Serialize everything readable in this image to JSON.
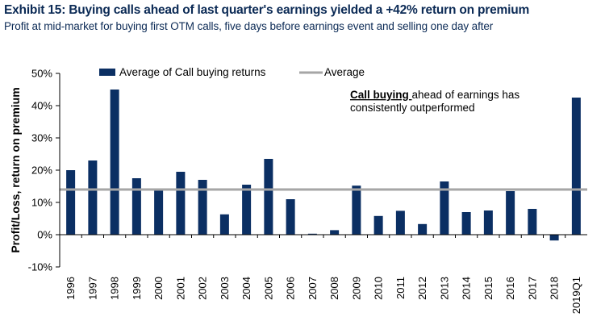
{
  "title": "Exhibit 15: Buying calls ahead of last quarter's earnings yielded a +42% return on premium",
  "subtitle": "Profit at mid-market for buying first OTM calls, five days before earnings event and selling one day after",
  "colors": {
    "bar": "#0b2f63",
    "average": "#a6a6a6",
    "title": "#0b2a55"
  },
  "chart_data": {
    "type": "bar",
    "title": "",
    "xlabel": "",
    "ylabel": "Profit/Loss, return on premium",
    "ylim": [
      -0.1,
      0.5
    ],
    "yticks": [
      -0.1,
      0,
      0.1,
      0.2,
      0.3,
      0.4,
      0.5
    ],
    "ytick_labels": [
      "-10%",
      "0%",
      "10%",
      "20%",
      "30%",
      "40%",
      "50%"
    ],
    "grid": false,
    "legend_position": "top",
    "categories": [
      "1996",
      "1997",
      "1998",
      "1999",
      "2000",
      "2001",
      "2002",
      "2003",
      "2004",
      "2005",
      "2006",
      "2007",
      "2008",
      "2009",
      "2010",
      "2011",
      "2012",
      "2013",
      "2014",
      "2015",
      "2016",
      "2017",
      "2018",
      "2019Q1"
    ],
    "series": [
      {
        "name": "Average of Call buying returns",
        "type": "bar",
        "values": [
          0.2,
          0.23,
          0.45,
          0.175,
          0.14,
          0.195,
          0.17,
          0.063,
          0.155,
          0.235,
          0.11,
          0.003,
          0.014,
          0.152,
          0.058,
          0.074,
          0.033,
          0.165,
          0.07,
          0.075,
          0.135,
          0.08,
          -0.018,
          0.425
        ]
      },
      {
        "name": "Average",
        "type": "line",
        "value": 0.14
      }
    ],
    "annotation": {
      "bold_part": "Call buying ",
      "rest_line1": "ahead of earnings has",
      "line2": "consistently outperformed"
    }
  }
}
